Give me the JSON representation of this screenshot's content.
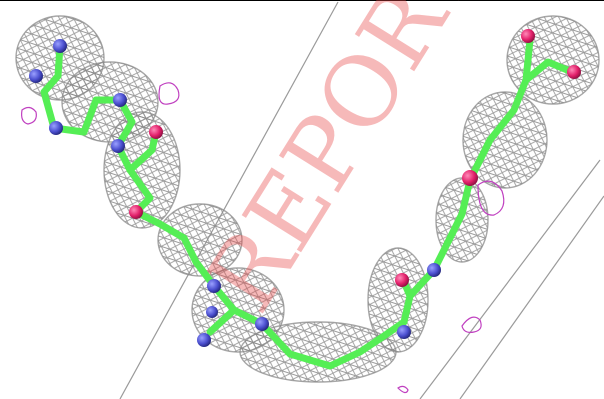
{
  "image": {
    "kind": "molecular-electron-density-render",
    "background": "#ffffff",
    "colors": {
      "mesh": "#8a8a8a",
      "carbon": "#55ee55",
      "nitrogen": "#4b4fcf",
      "oxygen": "#e2206a",
      "difference_map": "#c040c0",
      "guide_lines": "#9a9a9a",
      "frame": "#000000"
    }
  },
  "watermark": {
    "text": "REPORT",
    "color": "#e84848"
  }
}
